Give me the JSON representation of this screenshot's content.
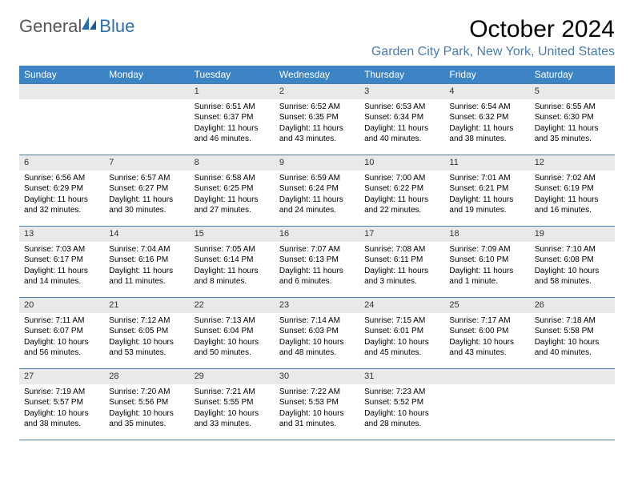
{
  "logo": {
    "text1": "General",
    "text2": "Blue"
  },
  "title": "October 2024",
  "location": "Garden City Park, New York, United States",
  "colors": {
    "header_bg": "#3d84c4",
    "border": "#4a7db0",
    "daynum_bg": "#e9e9e9",
    "location_color": "#4a7db0"
  },
  "day_names": [
    "Sunday",
    "Monday",
    "Tuesday",
    "Wednesday",
    "Thursday",
    "Friday",
    "Saturday"
  ],
  "weeks": [
    [
      null,
      null,
      {
        "n": "1",
        "sr": "6:51 AM",
        "ss": "6:37 PM",
        "dl": "11 hours and 46 minutes."
      },
      {
        "n": "2",
        "sr": "6:52 AM",
        "ss": "6:35 PM",
        "dl": "11 hours and 43 minutes."
      },
      {
        "n": "3",
        "sr": "6:53 AM",
        "ss": "6:34 PM",
        "dl": "11 hours and 40 minutes."
      },
      {
        "n": "4",
        "sr": "6:54 AM",
        "ss": "6:32 PM",
        "dl": "11 hours and 38 minutes."
      },
      {
        "n": "5",
        "sr": "6:55 AM",
        "ss": "6:30 PM",
        "dl": "11 hours and 35 minutes."
      }
    ],
    [
      {
        "n": "6",
        "sr": "6:56 AM",
        "ss": "6:29 PM",
        "dl": "11 hours and 32 minutes."
      },
      {
        "n": "7",
        "sr": "6:57 AM",
        "ss": "6:27 PM",
        "dl": "11 hours and 30 minutes."
      },
      {
        "n": "8",
        "sr": "6:58 AM",
        "ss": "6:25 PM",
        "dl": "11 hours and 27 minutes."
      },
      {
        "n": "9",
        "sr": "6:59 AM",
        "ss": "6:24 PM",
        "dl": "11 hours and 24 minutes."
      },
      {
        "n": "10",
        "sr": "7:00 AM",
        "ss": "6:22 PM",
        "dl": "11 hours and 22 minutes."
      },
      {
        "n": "11",
        "sr": "7:01 AM",
        "ss": "6:21 PM",
        "dl": "11 hours and 19 minutes."
      },
      {
        "n": "12",
        "sr": "7:02 AM",
        "ss": "6:19 PM",
        "dl": "11 hours and 16 minutes."
      }
    ],
    [
      {
        "n": "13",
        "sr": "7:03 AM",
        "ss": "6:17 PM",
        "dl": "11 hours and 14 minutes."
      },
      {
        "n": "14",
        "sr": "7:04 AM",
        "ss": "6:16 PM",
        "dl": "11 hours and 11 minutes."
      },
      {
        "n": "15",
        "sr": "7:05 AM",
        "ss": "6:14 PM",
        "dl": "11 hours and 8 minutes."
      },
      {
        "n": "16",
        "sr": "7:07 AM",
        "ss": "6:13 PM",
        "dl": "11 hours and 6 minutes."
      },
      {
        "n": "17",
        "sr": "7:08 AM",
        "ss": "6:11 PM",
        "dl": "11 hours and 3 minutes."
      },
      {
        "n": "18",
        "sr": "7:09 AM",
        "ss": "6:10 PM",
        "dl": "11 hours and 1 minute."
      },
      {
        "n": "19",
        "sr": "7:10 AM",
        "ss": "6:08 PM",
        "dl": "10 hours and 58 minutes."
      }
    ],
    [
      {
        "n": "20",
        "sr": "7:11 AM",
        "ss": "6:07 PM",
        "dl": "10 hours and 56 minutes."
      },
      {
        "n": "21",
        "sr": "7:12 AM",
        "ss": "6:05 PM",
        "dl": "10 hours and 53 minutes."
      },
      {
        "n": "22",
        "sr": "7:13 AM",
        "ss": "6:04 PM",
        "dl": "10 hours and 50 minutes."
      },
      {
        "n": "23",
        "sr": "7:14 AM",
        "ss": "6:03 PM",
        "dl": "10 hours and 48 minutes."
      },
      {
        "n": "24",
        "sr": "7:15 AM",
        "ss": "6:01 PM",
        "dl": "10 hours and 45 minutes."
      },
      {
        "n": "25",
        "sr": "7:17 AM",
        "ss": "6:00 PM",
        "dl": "10 hours and 43 minutes."
      },
      {
        "n": "26",
        "sr": "7:18 AM",
        "ss": "5:58 PM",
        "dl": "10 hours and 40 minutes."
      }
    ],
    [
      {
        "n": "27",
        "sr": "7:19 AM",
        "ss": "5:57 PM",
        "dl": "10 hours and 38 minutes."
      },
      {
        "n": "28",
        "sr": "7:20 AM",
        "ss": "5:56 PM",
        "dl": "10 hours and 35 minutes."
      },
      {
        "n": "29",
        "sr": "7:21 AM",
        "ss": "5:55 PM",
        "dl": "10 hours and 33 minutes."
      },
      {
        "n": "30",
        "sr": "7:22 AM",
        "ss": "5:53 PM",
        "dl": "10 hours and 31 minutes."
      },
      {
        "n": "31",
        "sr": "7:23 AM",
        "ss": "5:52 PM",
        "dl": "10 hours and 28 minutes."
      },
      null,
      null
    ]
  ],
  "labels": {
    "sunrise": "Sunrise:",
    "sunset": "Sunset:",
    "daylight": "Daylight:"
  }
}
